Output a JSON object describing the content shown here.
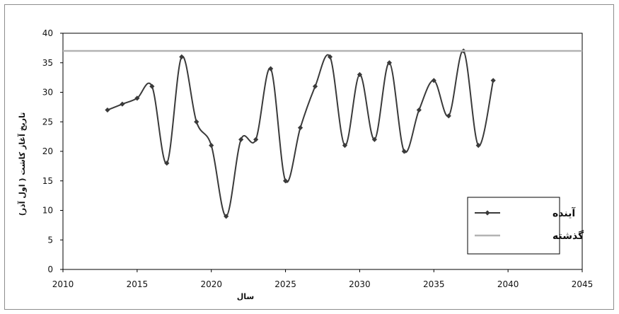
{
  "chart_data": {
    "type": "line",
    "xlabel": "سال",
    "ylabel": "تاریخ آغاز کاشت ( اول آذر)",
    "xlim": [
      2010,
      2045
    ],
    "ylim": [
      0,
      40
    ],
    "x_ticks": [
      "2010",
      "2015",
      "2020",
      "2025",
      "2030",
      "2035",
      "2040",
      "2045"
    ],
    "y_ticks": [
      "0",
      "5",
      "10",
      "15",
      "20",
      "25",
      "30",
      "35",
      "40"
    ],
    "grid": false,
    "legend_position": "bottom-right",
    "series": [
      {
        "name": "آینده",
        "color": "#3a3a3a",
        "marker": "diamond",
        "smooth": true,
        "x": [
          2013,
          2014,
          2015,
          2016,
          2017,
          2018,
          2019,
          2020,
          2021,
          2022,
          2023,
          2024,
          2025,
          2026,
          2027,
          2028,
          2029,
          2030,
          2031,
          2032,
          2033,
          2034,
          2035,
          2036,
          2037,
          2038,
          2039
        ],
        "values": [
          27,
          28,
          29,
          31,
          18,
          36,
          25,
          21,
          9,
          22,
          22,
          34,
          15,
          24,
          31,
          36,
          21,
          33,
          22,
          35,
          20,
          27,
          32,
          26,
          37,
          21,
          32
        ]
      },
      {
        "name": "گذشته",
        "color": "#b3b3b3",
        "marker": "none",
        "constant": 37
      }
    ]
  }
}
